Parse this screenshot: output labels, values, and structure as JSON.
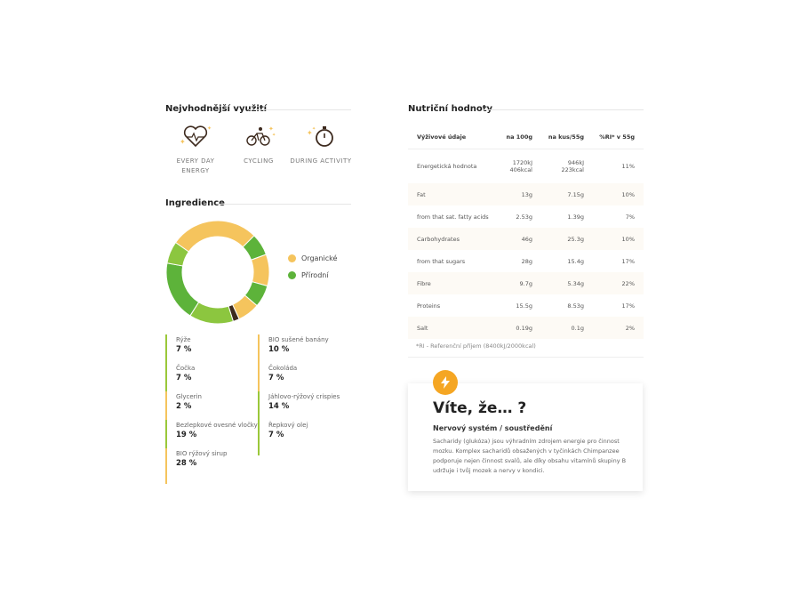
{
  "usage": {
    "title": "Nejvhodnější využití",
    "items": [
      {
        "label1": "EVERY DAY",
        "label2": "ENERGY",
        "icon": "heart-icon"
      },
      {
        "label1": "CYCLING",
        "label2": "",
        "icon": "cyclist-icon"
      },
      {
        "label1": "DURING ACTIVITY",
        "label2": "",
        "icon": "stopwatch-icon"
      }
    ]
  },
  "ingredients": {
    "title": "Ingredience",
    "legend": [
      {
        "label": "Organické",
        "color": "#f5c45d"
      },
      {
        "label": "Přírodní",
        "color": "#5db33a"
      }
    ],
    "items": [
      {
        "name": "Rýže",
        "value": "7 %"
      },
      {
        "name": "BIO sušené banány",
        "value": "10 %"
      },
      {
        "name": "Čočka",
        "value": "7 %"
      },
      {
        "name": "Čokoláda",
        "value": "7 %"
      },
      {
        "name": "Glycerin",
        "value": "2 %"
      },
      {
        "name": "Jáhlovo-rýžový crispies",
        "value": "14 %"
      },
      {
        "name": "Bezlepkové ovesné vločky",
        "value": "19 %"
      },
      {
        "name": "Řepkový olej",
        "value": "7 %"
      },
      {
        "name": "BIO rýžový sirup",
        "value": "28 %"
      }
    ]
  },
  "nutrition": {
    "title": "Nutriční hodnoty",
    "headers": [
      "Výživové údaje",
      "na 100g",
      "na kus/55g",
      "%RI* v 55g"
    ],
    "rows": [
      {
        "name": "Energetická hodnota",
        "per100": "1720kJ",
        "per100b": "406kcal",
        "perPiece": "946kJ",
        "perPieceb": "223kcal",
        "ri": "11%"
      },
      {
        "name": "Fat",
        "per100": "13g",
        "perPiece": "7.15g",
        "ri": "10%"
      },
      {
        "name": "from that sat. fatty acids",
        "per100": "2.53g",
        "perPiece": "1.39g",
        "ri": "7%"
      },
      {
        "name": "Carbohydrates",
        "per100": "46g",
        "perPiece": "25.3g",
        "ri": "10%"
      },
      {
        "name": "from that sugars",
        "per100": "28g",
        "perPiece": "15.4g",
        "ri": "17%"
      },
      {
        "name": "Fibre",
        "per100": "9.7g",
        "perPiece": "5.34g",
        "ri": "22%"
      },
      {
        "name": "Proteins",
        "per100": "15.5g",
        "perPiece": "8.53g",
        "ri": "17%"
      },
      {
        "name": "Salt",
        "per100": "0.19g",
        "perPiece": "0.1g",
        "ri": "2%"
      }
    ],
    "note": "*RI - Referenční příjem (8400kJ/2000kcal)"
  },
  "fact": {
    "title": "Víte, že… ?",
    "subtitle": "Nervový systém / soustředění",
    "text": "Sacharidy (glukóza) jsou výhradním zdrojem energie pro činnost mozku. Komplex sacharidů obsažených v tyčinkách Chimpanzee podporuje nejen činnost svalů, ale díky obsahu vitamínů skupiny B udržuje i tvůj mozek a nervy v kondici."
  },
  "chart_data": {
    "type": "pie",
    "values": [
      28,
      7,
      10,
      7,
      7,
      2,
      14,
      19,
      7
    ],
    "colors": [
      "#f5c45d",
      "#5db33a",
      "#f5c45d",
      "#5db33a",
      "#f5c45d",
      "#3d2a1e",
      "#8cc63f",
      "#5db33a",
      "#8cc63f"
    ]
  }
}
